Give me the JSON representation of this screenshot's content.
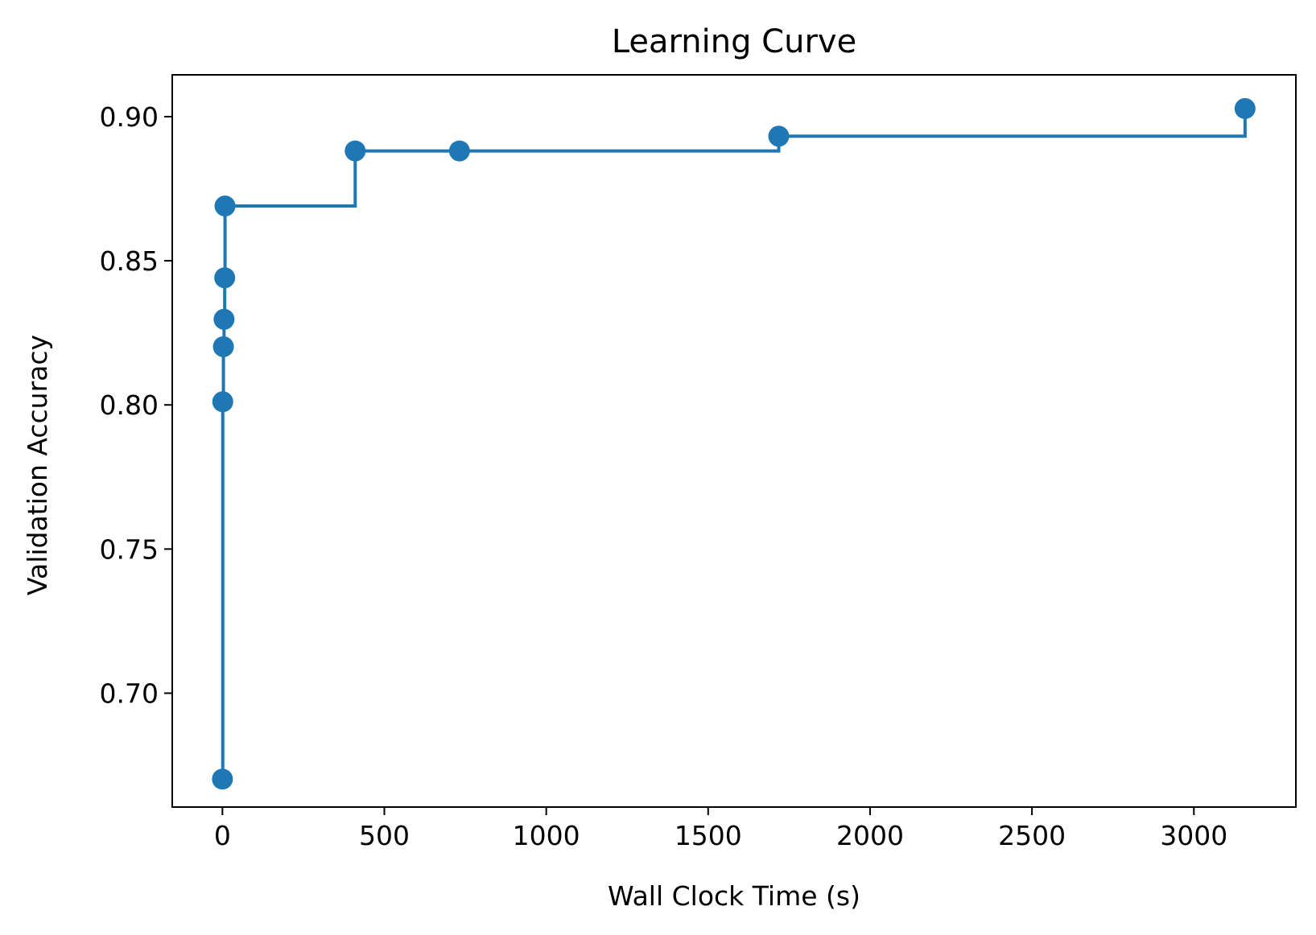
{
  "chart_data": {
    "type": "line",
    "title": "Learning Curve",
    "xlabel": "Wall Clock Time (s)",
    "ylabel": "Validation Accuracy",
    "xlim": [
      -155,
      3315
    ],
    "ylim": [
      0.6605,
      0.9145
    ],
    "xticks": [
      0,
      500,
      1000,
      1500,
      2000,
      2500,
      3000
    ],
    "xtick_labels": [
      "0",
      "500",
      "1000",
      "1500",
      "2000",
      "2500",
      "3000"
    ],
    "yticks": [
      0.7,
      0.75,
      0.8,
      0.85,
      0.9
    ],
    "ytick_labels": [
      "0.70",
      "0.75",
      "0.80",
      "0.85",
      "0.90"
    ],
    "grid": false,
    "legend": false,
    "line_style": "step-post",
    "series": [
      {
        "color": "#1f77b4",
        "x": [
          0,
          1,
          3,
          5,
          7,
          8,
          410,
          732,
          1718,
          3158
        ],
        "y": [
          0.6702,
          0.8011,
          0.8202,
          0.8297,
          0.8441,
          0.869,
          0.8881,
          0.8881,
          0.8932,
          0.9028
        ]
      }
    ]
  }
}
